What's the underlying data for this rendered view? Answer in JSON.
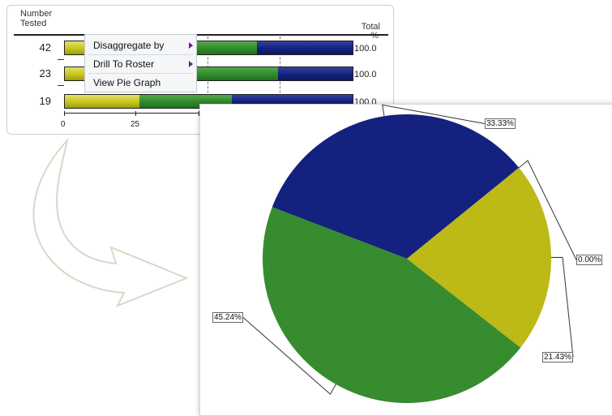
{
  "bar_panel": {
    "header_number": "Number",
    "header_tested": "Tested",
    "header_total": "Total",
    "header_pct": "%",
    "rows": [
      {
        "count": "42",
        "total": "100.0",
        "segments": {
          "yellow": 21.43,
          "green": 45.24,
          "blue": 33.33
        }
      },
      {
        "count": "23",
        "total": "100.0",
        "segments": {
          "yellow": 9.0,
          "green": 65.0,
          "blue": 26.0
        }
      },
      {
        "count": "19",
        "total": "100.0",
        "segments": {
          "yellow": 26.0,
          "green": 32.0,
          "blue": 42.0
        }
      }
    ],
    "axis_ticks": [
      "0",
      "25"
    ]
  },
  "context_menu": {
    "items": [
      {
        "label": "Disaggregate by",
        "has_submenu": true
      },
      {
        "label": "Drill To Roster",
        "has_submenu": true
      },
      {
        "label": "View Pie Graph",
        "has_submenu": false
      }
    ]
  },
  "colors": {
    "yellow": "#bdb916",
    "green": "#368c2e",
    "blue": "#14217f"
  },
  "pie_panel": {
    "chart_data": {
      "type": "pie",
      "slices": [
        {
          "label": "33.33%",
          "value": 33.33,
          "color": "#14217f"
        },
        {
          "label": "0.00%",
          "value": 0.0,
          "color": "#8a8a8a"
        },
        {
          "label": "21.43%",
          "value": 21.43,
          "color": "#bdb916"
        },
        {
          "label": "45.24%",
          "value": 45.24,
          "color": "#368c2e"
        }
      ]
    }
  }
}
